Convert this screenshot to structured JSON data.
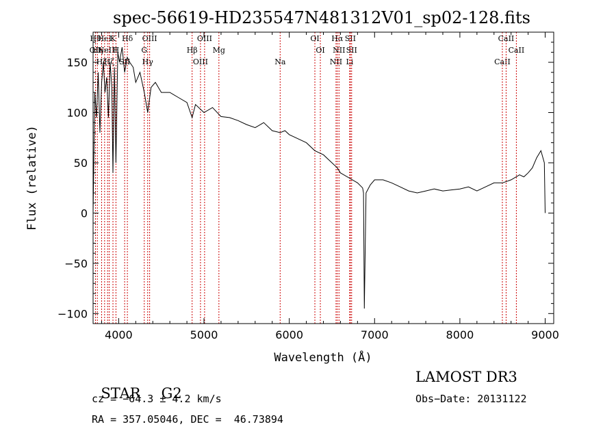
{
  "chart_data": {
    "type": "line",
    "title": "spec-56619-HD235547N481312V01_sp02-128.fits",
    "xlabel": "Wavelength (Å)",
    "ylabel": "Flux (relative)",
    "xlim": [
      3700,
      9100
    ],
    "ylim": [
      -110,
      180
    ],
    "xticks": [
      4000,
      5000,
      6000,
      7000,
      8000,
      9000
    ],
    "yticks": [
      -100,
      -50,
      0,
      50,
      100,
      150
    ],
    "xtick_labels": [
      "4000",
      "5000",
      "6000",
      "7000",
      "8000",
      "9000"
    ],
    "ytick_labels": [
      "−100",
      "−50",
      "0",
      "50",
      "100",
      "150"
    ],
    "grid": false,
    "legend": "none",
    "line_color": "#000000",
    "marker_color": "#cc0000",
    "series": [
      {
        "x": [
          3700,
          3720,
          3740,
          3760,
          3780,
          3800,
          3820,
          3840,
          3860,
          3880,
          3900,
          3920,
          3933,
          3950,
          3968,
          3990,
          4010,
          4040,
          4070,
          4100,
          4130,
          4170,
          4200,
          4250,
          4300,
          4340,
          4380,
          4430,
          4500,
          4600,
          4700,
          4800,
          4861,
          4900,
          5000,
          5100,
          5200,
          5300,
          5400,
          5500,
          5600,
          5700,
          5800,
          5893,
          5950,
          6000,
          6100,
          6200,
          6300,
          6400,
          6500,
          6563,
          6600,
          6700,
          6800,
          6860,
          6870,
          6880,
          6900,
          6950,
          7000,
          7100,
          7200,
          7300,
          7400,
          7500,
          7600,
          7700,
          7800,
          7900,
          8000,
          8100,
          8200,
          8300,
          8400,
          8500,
          8600,
          8700,
          8750,
          8800,
          8850,
          8900,
          8950,
          8990,
          9000
        ],
        "y": [
          0,
          120,
          95,
          140,
          80,
          130,
          150,
          120,
          135,
          95,
          150,
          125,
          40,
          145,
          50,
          160,
          150,
          165,
          140,
          155,
          150,
          145,
          130,
          140,
          120,
          100,
          125,
          130,
          120,
          120,
          115,
          110,
          95,
          108,
          100,
          105,
          96,
          95,
          92,
          88,
          85,
          90,
          82,
          80,
          82,
          78,
          74,
          70,
          62,
          58,
          50,
          45,
          40,
          35,
          30,
          25,
          20,
          -95,
          20,
          28,
          33,
          33,
          30,
          26,
          22,
          20,
          22,
          24,
          22,
          23,
          24,
          26,
          22,
          26,
          30,
          30,
          33,
          38,
          36,
          40,
          45,
          55,
          62,
          50,
          0
        ]
      }
    ],
    "markers": [
      {
        "x": 3728,
        "labels": [
          "Hθ",
          "OII"
        ]
      },
      {
        "x": 3750,
        "labels": [
          "Hη"
        ]
      },
      {
        "x": 3800,
        "labels": [
          "Hζ"
        ]
      },
      {
        "x": 3835,
        "labels": [
          "HeI"
        ]
      },
      {
        "x": 3870,
        "labels": [
          "NeIII"
        ]
      },
      {
        "x": 3889,
        "labels": [
          "Hζ"
        ]
      },
      {
        "x": 3933,
        "labels": [
          "K"
        ]
      },
      {
        "x": 3968,
        "labels": [
          "H"
        ]
      },
      {
        "x": 4070,
        "labels": [
          "SII"
        ]
      },
      {
        "x": 4102,
        "labels": [
          "Hδ"
        ]
      },
      {
        "x": 4300,
        "labels": [
          "G"
        ]
      },
      {
        "x": 4340,
        "labels": [
          "Hγ"
        ]
      },
      {
        "x": 4363,
        "labels": [
          "OIII"
        ]
      },
      {
        "x": 4861,
        "labels": [
          "Hβ"
        ]
      },
      {
        "x": 4959,
        "labels": [
          "OIII"
        ]
      },
      {
        "x": 5007,
        "labels": [
          "OIII"
        ]
      },
      {
        "x": 5175,
        "labels": [
          "Mg"
        ]
      },
      {
        "x": 5893,
        "labels": [
          "Na"
        ]
      },
      {
        "x": 6300,
        "labels": [
          "OI"
        ]
      },
      {
        "x": 6364,
        "labels": [
          "OI"
        ]
      },
      {
        "x": 6548,
        "labels": [
          "NII"
        ]
      },
      {
        "x": 6563,
        "labels": [
          "Hα"
        ]
      },
      {
        "x": 6583,
        "labels": [
          "NII"
        ]
      },
      {
        "x": 6708,
        "labels": [
          "Li"
        ]
      },
      {
        "x": 6716,
        "labels": [
          "SII"
        ]
      },
      {
        "x": 6731,
        "labels": [
          "SII"
        ]
      },
      {
        "x": 8498,
        "labels": [
          "CaII"
        ]
      },
      {
        "x": 8542,
        "labels": [
          "CaII"
        ]
      },
      {
        "x": 8662,
        "labels": [
          "CaII"
        ]
      }
    ]
  },
  "info": {
    "class": "STAR",
    "subclass": "G2",
    "survey": "LAMOST DR3",
    "cz": "cz = −64.3 ± 4.2 km/s",
    "obs_date": "Obs−Date: 20131122",
    "radec": "RA = 357.05046, DEC =  46.73894"
  }
}
